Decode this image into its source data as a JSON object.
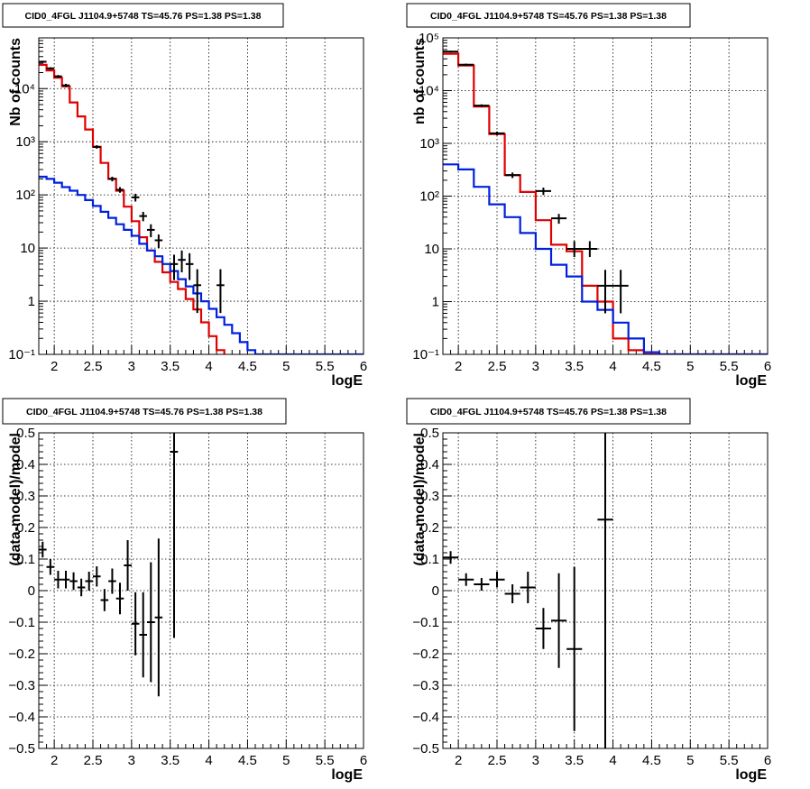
{
  "colors": {
    "data": "#000000",
    "total_model": "#e00000",
    "source_model": "#0020e0",
    "grid": "#000000"
  },
  "chart_data": [
    {
      "id": "spectrum-left",
      "type": "line",
      "title": "CID0_4FGL J1104.9+5748 TS=45.76 PS=1.38 PS=1.38",
      "xlabel": "logE",
      "ylabel": "Nb of counts",
      "xlim": [
        1.8,
        6.0
      ],
      "ylim": [
        0.1,
        90000
      ],
      "yscale": "log",
      "grid": true,
      "xticks": [
        2,
        2.5,
        3,
        3.5,
        4,
        4.5,
        5,
        5.5,
        6
      ],
      "xtick_labels": [
        "2",
        "2.5",
        "3",
        "3.5",
        "4",
        "4.5",
        "5",
        "5.5",
        "6"
      ],
      "yticks": [
        0.1,
        1,
        10,
        100,
        1000,
        10000
      ],
      "ytick_labels": [
        "10⁻¹",
        "1",
        "10",
        "10²",
        "10³",
        "10⁴"
      ],
      "bin_edges": [
        1.8,
        1.9,
        2.0,
        2.1,
        2.2,
        2.3,
        2.4,
        2.5,
        2.6,
        2.7,
        2.8,
        2.9,
        3.0,
        3.1,
        3.2,
        3.3,
        3.4,
        3.5,
        3.6,
        3.7,
        3.8,
        3.9,
        4.0,
        4.1,
        4.2,
        4.3,
        4.4,
        4.5,
        4.6,
        4.7,
        4.8,
        4.9,
        5.0,
        5.1,
        5.2,
        5.3,
        5.4,
        5.5,
        5.6,
        5.7,
        5.8,
        5.9,
        6.0
      ],
      "series": [
        {
          "name": "",
          "role": "total_model",
          "style": "step",
          "values": [
            28000,
            22000,
            16000,
            11000,
            5500,
            3000,
            1700,
            800,
            400,
            200,
            120,
            60,
            32,
            16,
            9,
            5.5,
            3.5,
            2.3,
            1.7,
            1.1,
            0.7,
            0.4,
            0.22,
            0.12,
            0.06,
            0.06,
            0.06,
            0.06,
            0.06,
            0.06,
            0.06,
            0.06,
            0.06,
            0.06,
            0.06,
            0.06,
            0.06,
            0.06,
            0.06,
            0.06,
            0.06,
            0.06
          ]
        },
        {
          "name": "",
          "role": "source_model",
          "style": "step",
          "values": [
            220,
            200,
            170,
            140,
            120,
            100,
            80,
            62,
            48,
            37,
            28,
            22,
            17,
            12,
            9,
            7,
            5,
            3.7,
            2.6,
            1.9,
            1.4,
            1.0,
            0.72,
            0.5,
            0.36,
            0.25,
            0.17,
            0.12,
            0.1,
            0.1,
            0.1,
            0.1,
            0.1,
            0.1,
            0.1,
            0.1,
            0.1,
            0.1,
            0.1,
            0.1,
            0.1,
            0.1
          ]
        },
        {
          "name": "",
          "role": "data",
          "style": "points",
          "points": [
            {
              "x": 1.85,
              "y": 32000,
              "xerr": 0.05,
              "yerr": [
                1500,
                1500
              ]
            },
            {
              "x": 1.95,
              "y": 24000,
              "xerr": 0.05,
              "yerr": [
                1200,
                1200
              ]
            },
            {
              "x": 2.05,
              "y": 17000,
              "xerr": 0.05,
              "yerr": [
                1000,
                1000
              ]
            },
            {
              "x": 2.15,
              "y": 11500,
              "xerr": 0.05,
              "yerr": [
                800,
                800
              ]
            },
            {
              "x": 2.55,
              "y": 800,
              "xerr": 0.05,
              "yerr": [
                60,
                60
              ]
            },
            {
              "x": 2.75,
              "y": 200,
              "xerr": 0.05,
              "yerr": [
                20,
                20
              ]
            },
            {
              "x": 2.85,
              "y": 125,
              "xerr": 0.05,
              "yerr": [
                15,
                15
              ]
            },
            {
              "x": 3.05,
              "y": 90,
              "xerr": 0.05,
              "yerr": [
                15,
                15
              ]
            },
            {
              "x": 3.15,
              "y": 40,
              "xerr": 0.05,
              "yerr": [
                8,
                8
              ]
            },
            {
              "x": 3.25,
              "y": 22,
              "xerr": 0.05,
              "yerr": [
                6,
                6
              ]
            },
            {
              "x": 3.35,
              "y": 14,
              "xerr": 0.05,
              "yerr": [
                4,
                4
              ]
            },
            {
              "x": 3.55,
              "y": 5,
              "xerr": 0.05,
              "yerr": [
                2.5,
                2.5
              ]
            },
            {
              "x": 3.65,
              "y": 6,
              "xerr": 0.05,
              "yerr": [
                2.5,
                3
              ]
            },
            {
              "x": 3.75,
              "y": 5,
              "xerr": 0.05,
              "yerr": [
                2.5,
                3
              ]
            },
            {
              "x": 3.85,
              "y": 2,
              "xerr": 0.05,
              "yerr": [
                1.4,
                2
              ]
            },
            {
              "x": 4.15,
              "y": 2,
              "xerr": 0.05,
              "yerr": [
                1.4,
                2
              ]
            }
          ]
        }
      ]
    },
    {
      "id": "spectrum-right",
      "type": "line",
      "title": "CID0_4FGL J1104.9+5748 TS=45.76 PS=1.38 PS=1.38",
      "xlabel": "logE",
      "ylabel": "nb of counts",
      "xlim": [
        1.8,
        6.0
      ],
      "ylim": [
        0.1,
        100000
      ],
      "yscale": "log",
      "grid": true,
      "xticks": [
        2,
        2.5,
        3,
        3.5,
        4,
        4.5,
        5,
        5.5,
        6
      ],
      "xtick_labels": [
        "2",
        "2.5",
        "3",
        "3.5",
        "4",
        "4.5",
        "5",
        "5.5",
        "6"
      ],
      "yticks": [
        0.1,
        1,
        10,
        100,
        1000,
        10000,
        100000
      ],
      "ytick_labels": [
        "10⁻¹",
        "1",
        "10",
        "10²",
        "10³",
        "10⁴",
        "10⁵"
      ],
      "bin_edges": [
        1.8,
        2.0,
        2.2,
        2.4,
        2.6,
        2.8,
        3.0,
        3.2,
        3.4,
        3.6,
        3.8,
        4.0,
        4.2,
        4.4,
        4.6,
        4.8,
        5.0,
        5.2,
        5.4,
        5.6,
        5.8,
        6.0
      ],
      "series": [
        {
          "name": "",
          "role": "total_model",
          "style": "step",
          "values": [
            50000,
            30000,
            5000,
            1500,
            250,
            120,
            35,
            12,
            9,
            2.0,
            1.0,
            0.2,
            0.12,
            0.1,
            0.1,
            0.1,
            0.1,
            0.1,
            0.1,
            0.1,
            0.1
          ]
        },
        {
          "name": "",
          "role": "source_model",
          "style": "step",
          "values": [
            400,
            320,
            150,
            70,
            40,
            20,
            10,
            5,
            3,
            1.0,
            0.7,
            0.4,
            0.2,
            0.11,
            0.1,
            0.1,
            0.1,
            0.1,
            0.1,
            0.1,
            0.1
          ]
        },
        {
          "name": "",
          "role": "data",
          "style": "points",
          "points": [
            {
              "x": 1.9,
              "y": 55000,
              "xerr": 0.1,
              "yerr": [
                2000,
                2000
              ]
            },
            {
              "x": 2.1,
              "y": 31000,
              "xerr": 0.1,
              "yerr": [
                1500,
                1500
              ]
            },
            {
              "x": 2.3,
              "y": 5200,
              "xerr": 0.1,
              "yerr": [
                300,
                300
              ]
            },
            {
              "x": 2.5,
              "y": 1550,
              "xerr": 0.1,
              "yerr": [
                120,
                120
              ]
            },
            {
              "x": 2.7,
              "y": 250,
              "xerr": 0.1,
              "yerr": [
                30,
                30
              ]
            },
            {
              "x": 3.1,
              "y": 125,
              "xerr": 0.1,
              "yerr": [
                20,
                20
              ]
            },
            {
              "x": 3.3,
              "y": 38,
              "xerr": 0.1,
              "yerr": [
                8,
                8
              ]
            },
            {
              "x": 3.5,
              "y": 10,
              "xerr": 0.1,
              "yerr": [
                3,
                4
              ]
            },
            {
              "x": 3.7,
              "y": 10,
              "xerr": 0.1,
              "yerr": [
                3,
                4
              ]
            },
            {
              "x": 3.9,
              "y": 2,
              "xerr": 0.1,
              "yerr": [
                1.4,
                2
              ]
            },
            {
              "x": 4.1,
              "y": 2,
              "xerr": 0.1,
              "yerr": [
                1.4,
                2
              ]
            }
          ]
        }
      ]
    },
    {
      "id": "residual-left",
      "type": "scatter",
      "title": "CID0_4FGL J1104.9+5748 TS=45.76 PS=1.38 PS=1.38",
      "xlabel": "logE",
      "ylabel": "(data-model)/model",
      "xlim": [
        1.8,
        6.0
      ],
      "ylim": [
        -0.5,
        0.5
      ],
      "grid": true,
      "xticks": [
        2,
        2.5,
        3,
        3.5,
        4,
        4.5,
        5,
        5.5,
        6
      ],
      "xtick_labels": [
        "2",
        "2.5",
        "3",
        "3.5",
        "4",
        "4.5",
        "5",
        "5.5",
        "6"
      ],
      "yticks": [
        -0.5,
        -0.4,
        -0.3,
        -0.2,
        -0.1,
        0,
        0.1,
        0.2,
        0.3,
        0.4,
        0.5
      ],
      "ytick_labels": [
        "−0.5",
        "−0.4",
        "−0.3",
        "−0.2",
        "−0.1",
        "0",
        "0.1",
        "0.2",
        "0.3",
        "0.4",
        "0.5"
      ],
      "series": [
        {
          "name": "",
          "role": "data",
          "style": "points",
          "points": [
            {
              "x": 1.85,
              "y": 0.13,
              "xerr": 0.05,
              "yerr": [
                0.025,
                0.025
              ]
            },
            {
              "x": 1.95,
              "y": 0.075,
              "xerr": 0.05,
              "yerr": [
                0.025,
                0.025
              ]
            },
            {
              "x": 2.05,
              "y": 0.035,
              "xerr": 0.05,
              "yerr": [
                0.028,
                0.028
              ]
            },
            {
              "x": 2.15,
              "y": 0.035,
              "xerr": 0.05,
              "yerr": [
                0.028,
                0.028
              ]
            },
            {
              "x": 2.25,
              "y": 0.03,
              "xerr": 0.05,
              "yerr": [
                0.028,
                0.028
              ]
            },
            {
              "x": 2.35,
              "y": 0.01,
              "xerr": 0.05,
              "yerr": [
                0.028,
                0.028
              ]
            },
            {
              "x": 2.45,
              "y": 0.03,
              "xerr": 0.05,
              "yerr": [
                0.03,
                0.03
              ]
            },
            {
              "x": 2.55,
              "y": 0.045,
              "xerr": 0.05,
              "yerr": [
                0.032,
                0.032
              ]
            },
            {
              "x": 2.65,
              "y": -0.03,
              "xerr": 0.05,
              "yerr": [
                0.035,
                0.035
              ]
            },
            {
              "x": 2.75,
              "y": 0.03,
              "xerr": 0.05,
              "yerr": [
                0.04,
                0.04
              ]
            },
            {
              "x": 2.85,
              "y": -0.025,
              "xerr": 0.05,
              "yerr": [
                0.05,
                0.05
              ]
            },
            {
              "x": 2.95,
              "y": 0.08,
              "xerr": 0.05,
              "yerr": [
                0.08,
                0.08
              ]
            },
            {
              "x": 3.05,
              "y": -0.105,
              "xerr": 0.05,
              "yerr": [
                0.1,
                0.1
              ]
            },
            {
              "x": 3.15,
              "y": -0.14,
              "xerr": 0.05,
              "yerr": [
                0.135,
                0.135
              ]
            },
            {
              "x": 3.25,
              "y": -0.1,
              "xerr": 0.05,
              "yerr": [
                0.19,
                0.19
              ]
            },
            {
              "x": 3.35,
              "y": -0.085,
              "xerr": 0.05,
              "yerr": [
                0.25,
                0.25
              ]
            },
            {
              "x": 3.55,
              "y": 0.44,
              "xerr": 0.05,
              "yerr": [
                0.59,
                0.06
              ]
            }
          ]
        }
      ]
    },
    {
      "id": "residual-right",
      "type": "scatter",
      "title": "CID0_4FGL J1104.9+5748 TS=45.76 PS=1.38 PS=1.38",
      "xlabel": "logE",
      "ylabel": "(data-model)/model",
      "xlim": [
        1.8,
        6.0
      ],
      "ylim": [
        -0.5,
        0.5
      ],
      "grid": true,
      "xticks": [
        2,
        2.5,
        3,
        3.5,
        4,
        4.5,
        5,
        5.5,
        6
      ],
      "xtick_labels": [
        "2",
        "2.5",
        "3",
        "3.5",
        "4",
        "4.5",
        "5",
        "5.5",
        "6"
      ],
      "yticks": [
        -0.5,
        -0.4,
        -0.3,
        -0.2,
        -0.1,
        0,
        0.1,
        0.2,
        0.3,
        0.4,
        0.5
      ],
      "ytick_labels": [
        "−0.5",
        "−0.4",
        "−0.3",
        "−0.2",
        "−0.1",
        "0",
        "0.1",
        "0.2",
        "0.3",
        "0.4",
        "0.5"
      ],
      "series": [
        {
          "name": "",
          "role": "data",
          "style": "points",
          "points": [
            {
              "x": 1.9,
              "y": 0.105,
              "xerr": 0.1,
              "yerr": [
                0.02,
                0.02
              ]
            },
            {
              "x": 2.1,
              "y": 0.035,
              "xerr": 0.1,
              "yerr": [
                0.02,
                0.02
              ]
            },
            {
              "x": 2.3,
              "y": 0.02,
              "xerr": 0.1,
              "yerr": [
                0.02,
                0.02
              ]
            },
            {
              "x": 2.5,
              "y": 0.035,
              "xerr": 0.1,
              "yerr": [
                0.025,
                0.025
              ]
            },
            {
              "x": 2.7,
              "y": -0.01,
              "xerr": 0.1,
              "yerr": [
                0.03,
                0.03
              ]
            },
            {
              "x": 2.9,
              "y": 0.01,
              "xerr": 0.1,
              "yerr": [
                0.05,
                0.05
              ]
            },
            {
              "x": 3.1,
              "y": -0.12,
              "xerr": 0.1,
              "yerr": [
                0.065,
                0.065
              ]
            },
            {
              "x": 3.3,
              "y": -0.095,
              "xerr": 0.1,
              "yerr": [
                0.15,
                0.15
              ]
            },
            {
              "x": 3.5,
              "y": -0.185,
              "xerr": 0.1,
              "yerr": [
                0.26,
                0.26
              ]
            },
            {
              "x": 3.9,
              "y": 0.225,
              "xerr": 0.1,
              "yerr": [
                0.75,
                0.3
              ]
            }
          ]
        }
      ]
    }
  ]
}
